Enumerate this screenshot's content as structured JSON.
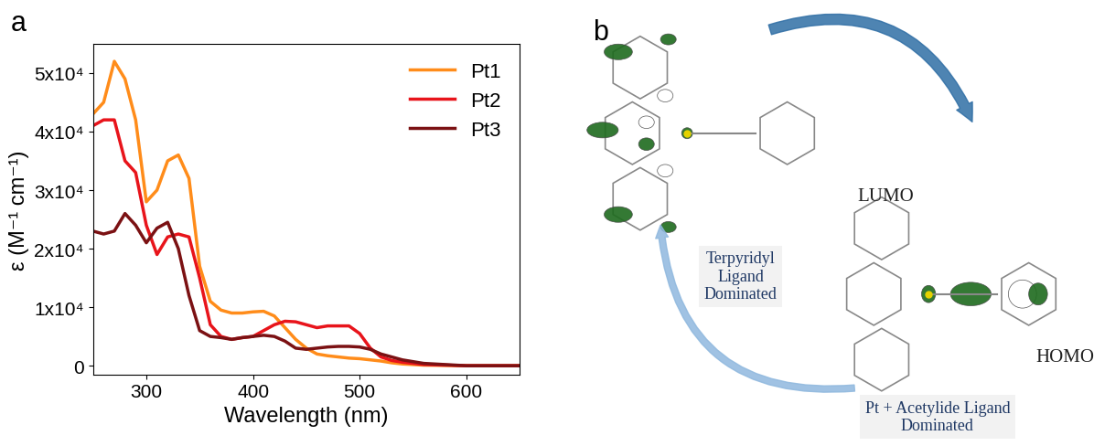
{
  "chart_data": {
    "type": "line",
    "panel_label": "a",
    "x_label": "Wavelength (nm)",
    "y_label": "ε (M⁻¹ cm⁻¹)",
    "x": [
      250,
      260,
      270,
      280,
      290,
      300,
      310,
      320,
      330,
      340,
      350,
      360,
      370,
      380,
      390,
      400,
      410,
      420,
      430,
      440,
      450,
      460,
      470,
      480,
      490,
      500,
      510,
      520,
      530,
      540,
      550,
      560,
      600,
      650
    ],
    "series": [
      {
        "name": "Pt1",
        "color": "#ff8c1a",
        "values": [
          43000,
          45000,
          52000,
          49000,
          42000,
          28000,
          30000,
          35000,
          36000,
          32000,
          17000,
          11000,
          9500,
          9000,
          9000,
          9200,
          9300,
          8500,
          6500,
          4500,
          3000,
          2000,
          1700,
          1500,
          1300,
          1200,
          1000,
          800,
          500,
          300,
          200,
          100,
          0,
          0
        ]
      },
      {
        "name": "Pt2",
        "color": "#e8141b",
        "values": [
          41000,
          42000,
          42000,
          35000,
          33000,
          24000,
          19000,
          22000,
          22500,
          22000,
          15000,
          7000,
          5000,
          4500,
          4800,
          5000,
          6000,
          7000,
          7600,
          7500,
          7000,
          6500,
          6800,
          6800,
          6800,
          5500,
          3000,
          1500,
          900,
          600,
          400,
          200,
          0,
          0
        ]
      },
      {
        "name": "Pt3",
        "color": "#7b1113",
        "values": [
          23000,
          22500,
          23000,
          26000,
          24000,
          21000,
          23500,
          24500,
          20000,
          12000,
          6000,
          5000,
          4800,
          4500,
          4800,
          5000,
          5200,
          5000,
          4200,
          3000,
          2800,
          3000,
          3200,
          3300,
          3300,
          3200,
          2800,
          2000,
          1500,
          1000,
          700,
          400,
          0,
          0
        ]
      }
    ],
    "xlim": [
      250,
      650
    ],
    "xticks": [
      300,
      400,
      500,
      600
    ],
    "ylim": [
      -1500,
      55000
    ],
    "yticks": [
      0,
      {
        "value": 10000,
        "label": "1x10⁴"
      },
      {
        "value": 20000,
        "label": "2x10⁴"
      },
      {
        "value": 30000,
        "label": "3x10⁴"
      },
      {
        "value": 40000,
        "label": "4x10⁴"
      },
      {
        "value": 50000,
        "label": "5x10⁴"
      }
    ],
    "legend": "upper right",
    "grid": false
  },
  "diagram": {
    "panel_label": "b",
    "nodes": [
      {
        "label": "LUMO"
      },
      {
        "label": "HOMO"
      },
      {
        "label": "Terpyridyl\nLigand\nDominated"
      },
      {
        "label": "Pt + Acetylide Ligand\nDominated"
      }
    ]
  }
}
